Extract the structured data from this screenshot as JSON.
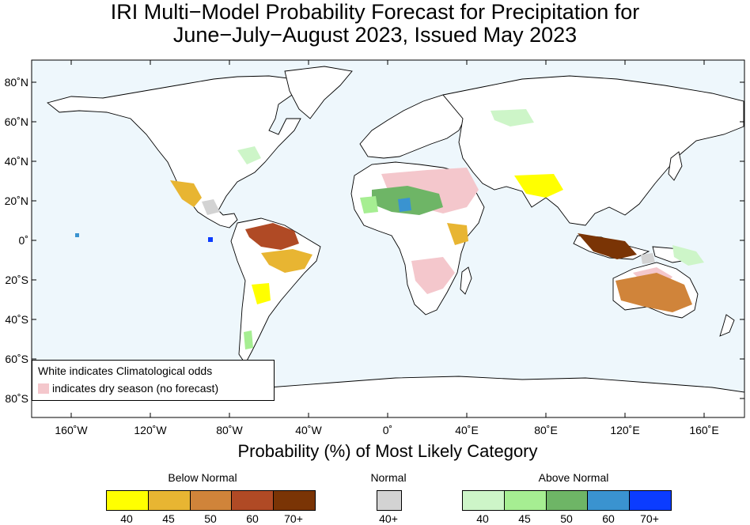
{
  "title": {
    "line1": "IRI Multi−Model Probability Forecast for Precipitation for",
    "line2": "June−July−August 2023, Issued May 2023"
  },
  "axes": {
    "longitude_labels": [
      "160˚W",
      "120˚W",
      "80˚W",
      "40˚W",
      "0˚",
      "40˚E",
      "80˚E",
      "120˚E",
      "160˚E"
    ],
    "latitude_labels": [
      "80˚N",
      "60˚N",
      "40˚N",
      "20˚N",
      "0˚",
      "20˚S",
      "40˚S",
      "60˚S",
      "80˚S"
    ],
    "x_title": "Probability (%) of Most Likely Category"
  },
  "map_legend": {
    "line1": "White indicates Climatological odds",
    "line2": "indicates dry season (no forecast)"
  },
  "colorbar": {
    "below_normal": {
      "label": "Below Normal",
      "ticks": [
        "40",
        "45",
        "50",
        "60",
        "70+"
      ],
      "colors": [
        "#ffff00",
        "#e8b532",
        "#d0843a",
        "#b04a25",
        "#7a3405"
      ]
    },
    "normal": {
      "label": "Normal",
      "ticks": [
        "40+"
      ],
      "colors": [
        "#d3d3d3"
      ]
    },
    "above_normal": {
      "label": "Above Normal",
      "ticks": [
        "40",
        "45",
        "50",
        "60",
        "70+"
      ],
      "colors": [
        "#cdf5c8",
        "#a6ee92",
        "#6eb566",
        "#3a93d0",
        "#0b3cff"
      ]
    }
  },
  "colors": {
    "ocean": "#eef7fc",
    "land": "#ffffff",
    "dry_season": "#f4c7cc",
    "coast": "#000000",
    "border": "#999999"
  }
}
